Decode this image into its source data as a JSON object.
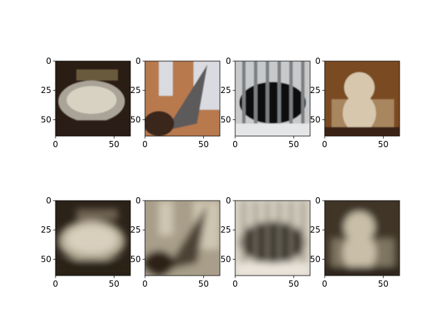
{
  "chart_data": {
    "type": "image_grid",
    "layout": {
      "rows": 2,
      "cols": 4
    },
    "image_extent": [
      0,
      64
    ],
    "xticks": [
      0,
      50
    ],
    "yticks": [
      0,
      25,
      50
    ],
    "panels": [
      {
        "row": 0,
        "col": 0,
        "kind": "original",
        "subject": "silver tray with food on a dark table",
        "palette": [
          "#2a1d14",
          "#a9a497",
          "#d8d2c2",
          "#6b5a3d"
        ]
      },
      {
        "row": 0,
        "col": 1,
        "kind": "original",
        "subject": "hand holding a large grey fish outdoors",
        "palette": [
          "#b8794e",
          "#5d5a5c",
          "#d9dbe0",
          "#3a261a"
        ]
      },
      {
        "row": 0,
        "col": 2,
        "kind": "original",
        "subject": "black dog behind metal bars",
        "palette": [
          "#c8c9cb",
          "#111111",
          "#7d8083",
          "#e5e6e8"
        ]
      },
      {
        "row": 0,
        "col": 3,
        "kind": "original",
        "subject": "light-colored dog sitting on wooden floor",
        "palette": [
          "#7a4b22",
          "#d7c7ac",
          "#3b2412",
          "#a8865f"
        ]
      },
      {
        "row": 1,
        "col": 0,
        "kind": "reconstruction",
        "subject": "blurry sepia reconstruction of tray",
        "palette": [
          "#2b2218",
          "#b7ad98",
          "#d8d0bd",
          "#6f6452"
        ]
      },
      {
        "row": 1,
        "col": 1,
        "kind": "reconstruction",
        "subject": "blurry sepia reconstruction of fish",
        "palette": [
          "#a89e89",
          "#4e4335",
          "#cfc6b2",
          "#2d2419"
        ]
      },
      {
        "row": 1,
        "col": 2,
        "kind": "reconstruction",
        "subject": "blurry sepia reconstruction of dog behind bars",
        "palette": [
          "#d7d1c3",
          "#1f1a14",
          "#8c8473",
          "#ebe6dc"
        ]
      },
      {
        "row": 1,
        "col": 3,
        "kind": "reconstruction",
        "subject": "blurry sepia reconstruction of sitting dog",
        "palette": [
          "#3f3426",
          "#c9bfa8",
          "#261f16",
          "#7f7460"
        ]
      }
    ]
  }
}
